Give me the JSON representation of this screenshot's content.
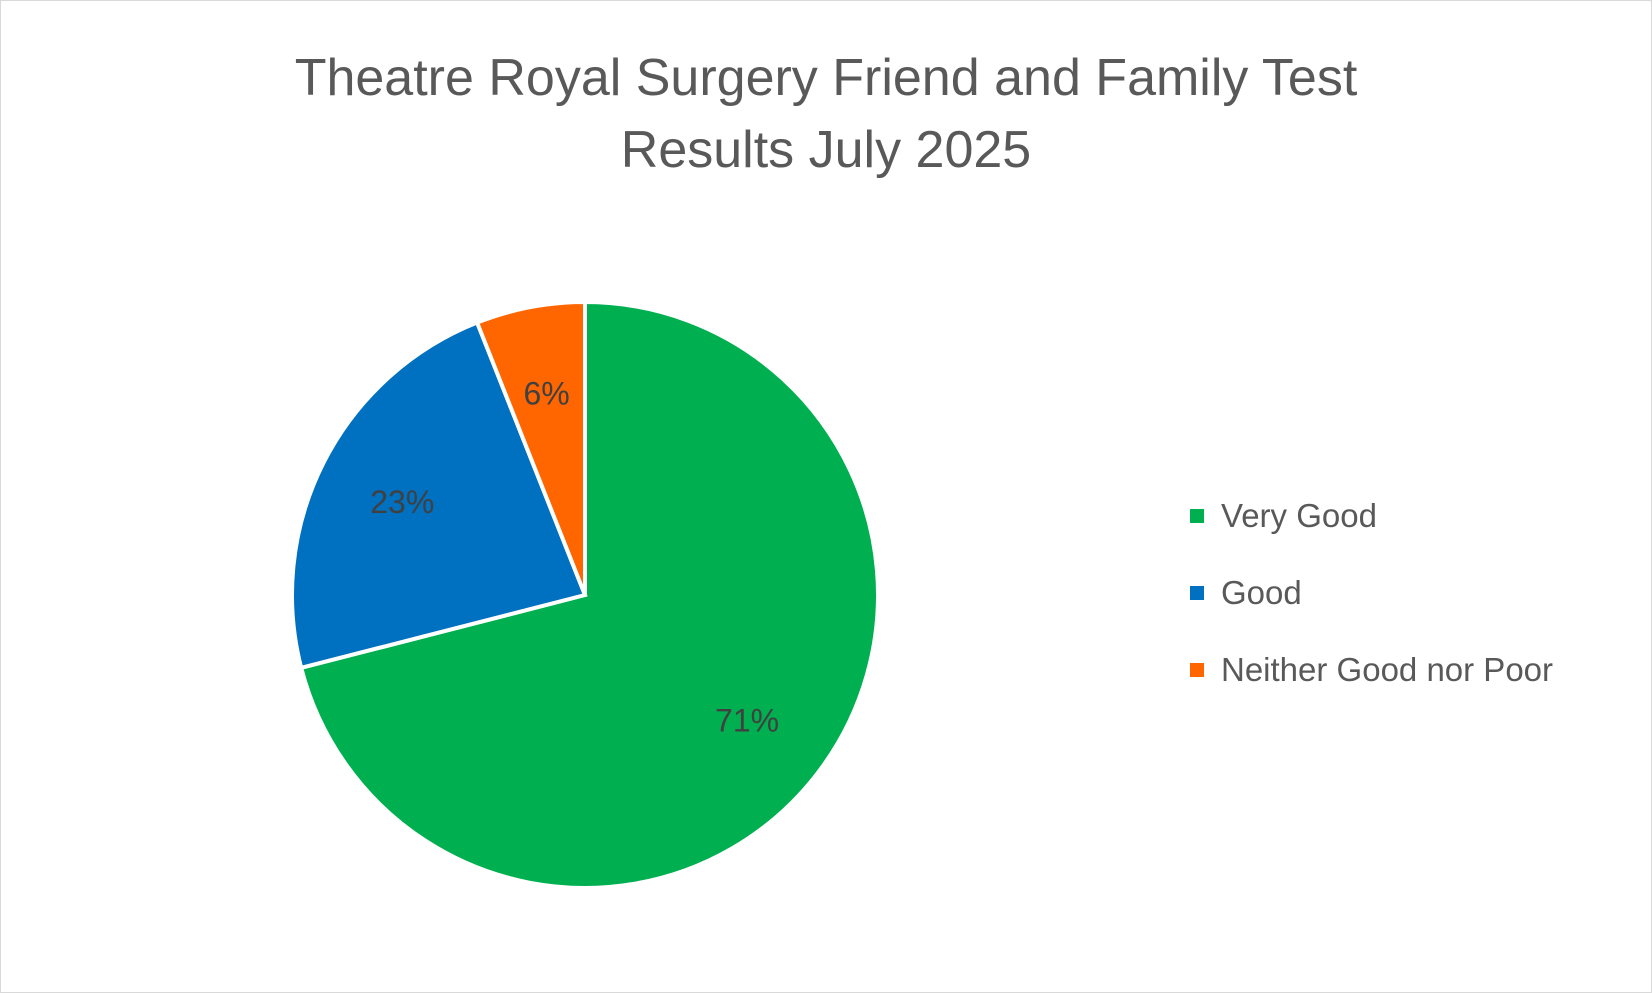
{
  "chart_data": {
    "type": "pie",
    "title_lines": [
      "Theatre Royal Surgery Friend and Family Test",
      "Results July 2025"
    ],
    "slices": [
      {
        "label": "Very Good",
        "value": 71,
        "data_label": "71%",
        "color": "#00B050"
      },
      {
        "label": "Good",
        "value": 23,
        "data_label": "23%",
        "color": "#0070C0"
      },
      {
        "label": "Neither Good nor Poor",
        "value": 6,
        "data_label": "6%",
        "color": "#FF6600"
      }
    ],
    "legend_position": "right"
  }
}
